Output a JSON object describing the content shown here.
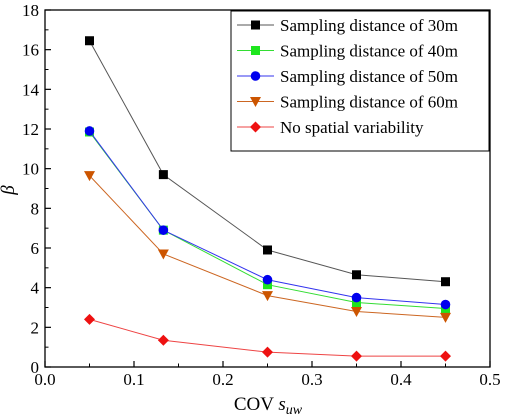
{
  "chart_data": {
    "type": "line",
    "title": "",
    "xlabel_main": "COV ",
    "xlabel_var": "s",
    "xlabel_sub": "uw",
    "ylabel": "β",
    "xlim": [
      0.0,
      0.5
    ],
    "ylim": [
      0,
      18
    ],
    "xticks": [
      "0.0",
      "0.1",
      "0.2",
      "0.3",
      "0.4",
      "0.5"
    ],
    "yticks": [
      "0",
      "2",
      "4",
      "6",
      "8",
      "10",
      "12",
      "14",
      "16",
      "18"
    ],
    "grid": false,
    "legend_position": "top-right",
    "x": [
      0.05,
      0.133,
      0.25,
      0.35,
      0.45
    ],
    "series": [
      {
        "name": "Sampling distance of 30m",
        "marker": "square",
        "color": "#000000",
        "line_color": "#555555",
        "values": [
          16.45,
          9.7,
          5.9,
          4.65,
          4.3
        ]
      },
      {
        "name": "Sampling distance of 40m",
        "marker": "square",
        "color": "#1ee61e",
        "line_color": "#33dd33",
        "values": [
          11.85,
          6.9,
          4.15,
          3.25,
          2.95
        ]
      },
      {
        "name": "Sampling distance of 50m",
        "marker": "circle",
        "color": "#0000ee",
        "line_color": "#3333ee",
        "values": [
          11.9,
          6.9,
          4.4,
          3.5,
          3.15
        ]
      },
      {
        "name": "Sampling distance of 60m",
        "marker": "triangle-down",
        "color": "#cc5500",
        "line_color": "#cc6622",
        "values": [
          9.65,
          5.7,
          3.6,
          2.8,
          2.5
        ]
      },
      {
        "name": "No spatial variability",
        "marker": "diamond",
        "color": "#ee1111",
        "line_color": "#ee4444",
        "values": [
          2.4,
          1.35,
          0.75,
          0.55,
          0.55
        ]
      }
    ]
  }
}
